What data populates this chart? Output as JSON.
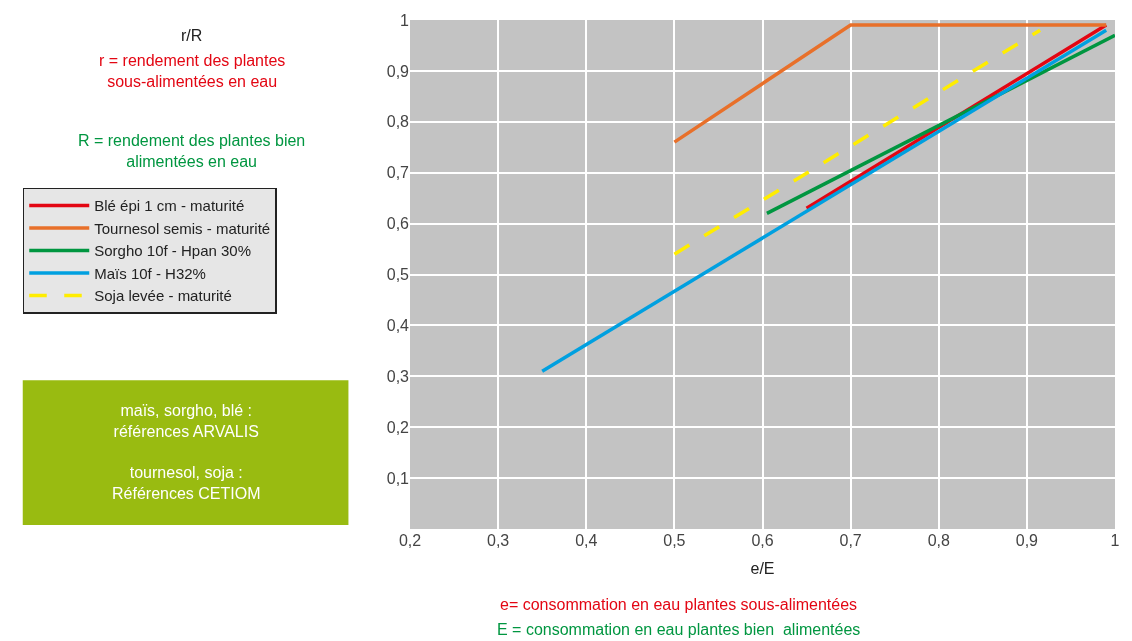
{
  "chart_data": {
    "type": "line",
    "xlabel": "e/E",
    "series": [
      {
        "name": "Blé épi 1 cm - maturité",
        "color": "#e30613",
        "x": [
          0.65,
          0.99
        ],
        "values": [
          0.63,
          0.99
        ]
      },
      {
        "name": "Tournesol semis - maturité",
        "color": "#e8702a",
        "x": [
          0.5,
          0.7,
          0.99
        ],
        "values": [
          0.76,
          0.99,
          0.99
        ]
      },
      {
        "name": "Sorgho 10f - Hpan 30%",
        "color": "#009640",
        "x": [
          0.605,
          1.0
        ],
        "values": [
          0.62,
          0.97
        ]
      },
      {
        "name": "Maïs 10f - H32%",
        "color": "#00a0e0",
        "x": [
          0.35,
          0.99
        ],
        "values": [
          0.31,
          0.98
        ]
      },
      {
        "name": "Soja levée - maturité",
        "color": "#ffed00",
        "x": [
          0.5,
          0.915
        ],
        "values": [
          0.54,
          0.98
        ],
        "line_style": "dashed"
      }
    ],
    "xlim": [
      0.2,
      1
    ],
    "ylim": [
      0,
      1
    ],
    "xticks": [
      {
        "value": 0.2,
        "label": "0,2"
      },
      {
        "value": 0.3,
        "label": "0,3"
      },
      {
        "value": 0.4,
        "label": "0,4"
      },
      {
        "value": 0.5,
        "label": "0,5"
      },
      {
        "value": 0.6,
        "label": "0,6"
      },
      {
        "value": 0.7,
        "label": "0,7"
      },
      {
        "value": 0.8,
        "label": "0,8"
      },
      {
        "value": 0.9,
        "label": "0,9"
      },
      {
        "value": 1,
        "label": "1"
      }
    ],
    "yticks": [
      {
        "value": 0.1,
        "label": "0,1"
      },
      {
        "value": 0.2,
        "label": "0,2"
      },
      {
        "value": 0.3,
        "label": "0,3"
      },
      {
        "value": 0.4,
        "label": "0,4"
      },
      {
        "value": 0.5,
        "label": "0,5"
      },
      {
        "value": 0.6,
        "label": "0,6"
      },
      {
        "value": 0.7,
        "label": "0,7"
      },
      {
        "value": 0.8,
        "label": "0,8"
      },
      {
        "value": 0.9,
        "label": "0,9"
      },
      {
        "value": 1,
        "label": "1"
      }
    ],
    "grid": true,
    "legend": "left",
    "marker": "none",
    "line_style": "solid",
    "annotations": [
      "r/R",
      "r = rendement des plantes\nsous-alimentées en eau",
      "R = rendement des plantes bien\nalimentées en eau",
      "maïs, sorgho, blé :\nréférences ARVALIS\n\ntournesol, soja :\nRéférences CETIOM",
      "e= consommation en eau plantes sous-alimentées",
      "E = consommation en eau plantes bien  alimentées"
    ]
  }
}
